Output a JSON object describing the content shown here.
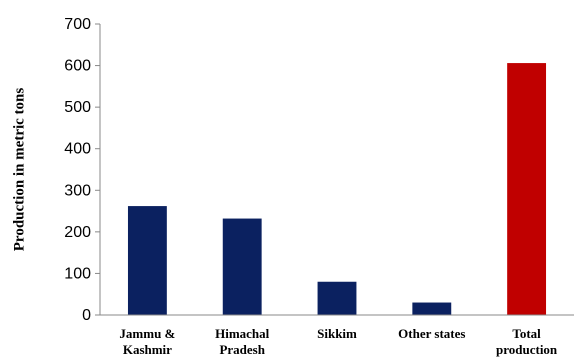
{
  "chart_data": {
    "type": "bar",
    "title": "",
    "xlabel": "",
    "ylabel": "Production in metric tons",
    "ylim": [
      0,
      700
    ],
    "yticks": [
      0,
      100,
      200,
      300,
      400,
      500,
      600,
      700
    ],
    "grid": false,
    "legend": "none",
    "categories": [
      [
        "Jammu &",
        "Kashmir"
      ],
      [
        "Himachal",
        "Pradesh"
      ],
      [
        "Sikkim"
      ],
      [
        "Other states"
      ],
      [
        "Total",
        "production"
      ]
    ],
    "values": [
      262,
      232,
      80,
      30,
      606
    ],
    "colors": [
      "#0b2160",
      "#0b2160",
      "#0b2160",
      "#0b2160",
      "#c00000"
    ]
  }
}
